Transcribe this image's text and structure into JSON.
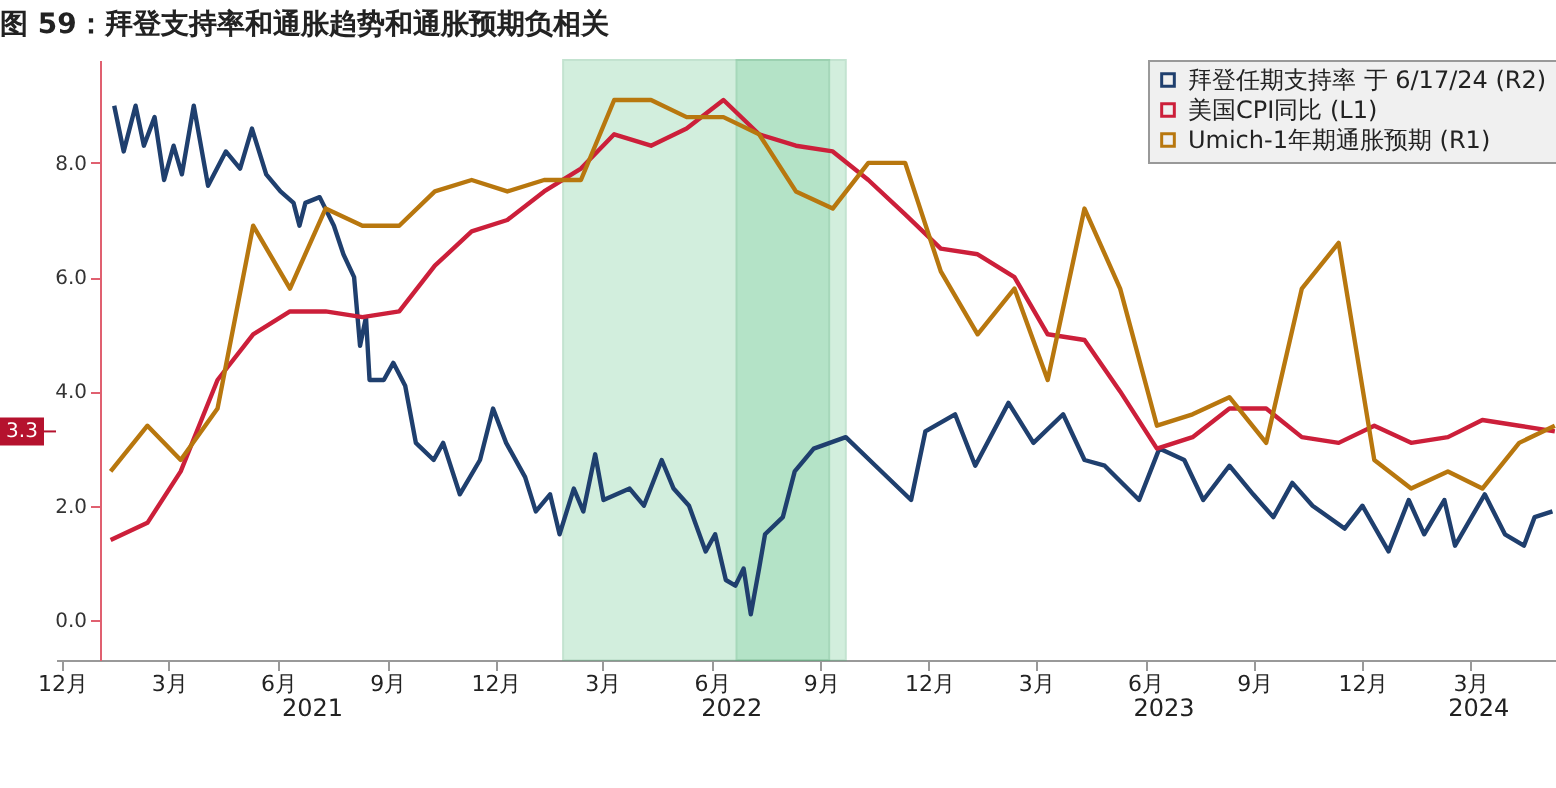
{
  "chart_data": {
    "type": "line",
    "title": "图 59：拜登支持率和通胀趋势和通胀预期负相关",
    "xlim": [
      "2020-12-10",
      "2024-05-26"
    ],
    "xticks": [
      {
        "value": "2020-12-15",
        "label": "12月"
      },
      {
        "value": "2021-03-15",
        "label": "3月"
      },
      {
        "value": "2021-06-15",
        "label": "6月"
      },
      {
        "value": "2021-09-15",
        "label": "9月"
      },
      {
        "value": "2021-12-15",
        "label": "12月"
      },
      {
        "value": "2022-03-15",
        "label": "3月"
      },
      {
        "value": "2022-06-15",
        "label": "6月"
      },
      {
        "value": "2022-09-15",
        "label": "9月"
      },
      {
        "value": "2022-12-15",
        "label": "12月"
      },
      {
        "value": "2023-03-15",
        "label": "3月"
      },
      {
        "value": "2023-06-15",
        "label": "6月"
      },
      {
        "value": "2023-09-15",
        "label": "9月"
      },
      {
        "value": "2023-12-15",
        "label": "12月"
      },
      {
        "value": "2024-03-15",
        "label": "3月"
      }
    ],
    "ylim": [
      -0.7,
      9.8
    ],
    "yticks": [
      {
        "value": 0,
        "label": "0.0"
      },
      {
        "value": 2,
        "label": "2.0"
      },
      {
        "value": 4,
        "label": "4.0"
      },
      {
        "value": 6,
        "label": "6.0"
      },
      {
        "value": 8,
        "label": "8.0"
      }
    ],
    "grid": false,
    "legend": "top right",
    "line_style": "solid",
    "series": [
      {
        "name": "拜登任期支持率 于 6/17/24 (R2)",
        "color": "#1f3f6e",
        "x": [
          "2021-01-28",
          "2021-02-05",
          "2021-02-15",
          "2021-02-22",
          "2021-03-03",
          "2021-03-11",
          "2021-03-19",
          "2021-03-26",
          "2021-04-05",
          "2021-04-17",
          "2021-05-02",
          "2021-05-14",
          "2021-05-24",
          "2021-06-05",
          "2021-06-17",
          "2021-06-28",
          "2021-07-03",
          "2021-07-08",
          "2021-07-20",
          "2021-08-01",
          "2021-08-09",
          "2021-08-18",
          "2021-08-23",
          "2021-08-28",
          "2021-08-31",
          "2021-09-12",
          "2021-09-20",
          "2021-09-30",
          "2021-10-09",
          "2021-10-24",
          "2021-11-01",
          "2021-11-15",
          "2021-12-02",
          "2021-12-13",
          "2021-12-24",
          "2022-01-09",
          "2022-01-18",
          "2022-01-30",
          "2022-02-07",
          "2022-02-19",
          "2022-02-27",
          "2022-03-09",
          "2022-03-16",
          "2022-04-07",
          "2022-04-19",
          "2022-05-04",
          "2022-05-14",
          "2022-05-27",
          "2022-06-10",
          "2022-06-18",
          "2022-06-27",
          "2022-07-05",
          "2022-07-12",
          "2022-07-18",
          "2022-07-25",
          "2022-07-30",
          "2022-08-14",
          "2022-08-24",
          "2022-09-09",
          "2022-10-06",
          "2022-10-31",
          "2022-11-30",
          "2022-12-12",
          "2023-01-06",
          "2023-01-23",
          "2023-02-20",
          "2023-03-13",
          "2023-04-07",
          "2023-04-25",
          "2023-05-12",
          "2023-06-10",
          "2023-06-27",
          "2023-07-18",
          "2023-08-03",
          "2023-08-25",
          "2023-09-14",
          "2023-10-01",
          "2023-10-17",
          "2023-11-03",
          "2023-11-30",
          "2023-12-15",
          "2024-01-06",
          "2024-01-23",
          "2024-02-05",
          "2024-02-22",
          "2024-03-02",
          "2024-03-27",
          "2024-04-13",
          "2024-04-29",
          "2024-05-08",
          "2024-05-23"
        ],
        "values": [
          9.0,
          8.2,
          9.0,
          8.3,
          8.8,
          7.7,
          8.3,
          7.8,
          9.0,
          7.6,
          8.2,
          7.9,
          8.6,
          7.8,
          7.5,
          7.3,
          6.9,
          7.3,
          7.4,
          6.9,
          6.4,
          6.0,
          4.8,
          5.3,
          4.2,
          4.2,
          4.5,
          4.1,
          3.1,
          2.8,
          3.1,
          2.2,
          2.8,
          3.7,
          3.1,
          2.5,
          1.9,
          2.2,
          1.5,
          2.3,
          1.9,
          2.9,
          2.1,
          2.3,
          2.0,
          2.8,
          2.3,
          2.0,
          1.2,
          1.5,
          0.7,
          0.6,
          0.9,
          0.1,
          0.9,
          1.5,
          1.8,
          2.6,
          3.0,
          3.2,
          2.7,
          2.1,
          3.3,
          3.6,
          2.7,
          3.8,
          3.1,
          3.6,
          2.8,
          2.7,
          2.1,
          3.0,
          2.8,
          2.1,
          2.7,
          2.2,
          1.8,
          2.4,
          2.0,
          1.6,
          2.0,
          1.2,
          2.1,
          1.5,
          2.1,
          1.3,
          2.2,
          1.5,
          1.3,
          1.8,
          1.9
        ]
      },
      {
        "name": "美国CPI同比 (L1)",
        "color": "#cc1f3a",
        "x": [
          "2021-01-25",
          "2021-02-25",
          "2021-03-25",
          "2021-04-25",
          "2021-05-25",
          "2021-06-25",
          "2021-07-25",
          "2021-08-25",
          "2021-09-25",
          "2021-10-25",
          "2021-11-25",
          "2021-12-25",
          "2022-01-25",
          "2022-02-25",
          "2022-03-25",
          "2022-04-25",
          "2022-05-25",
          "2022-06-25",
          "2022-07-25",
          "2022-08-25",
          "2022-09-25",
          "2022-10-25",
          "2022-11-25",
          "2022-12-25",
          "2023-01-25",
          "2023-02-25",
          "2023-03-25",
          "2023-04-25",
          "2023-05-25",
          "2023-06-25",
          "2023-07-25",
          "2023-08-25",
          "2023-09-25",
          "2023-10-25",
          "2023-11-25",
          "2023-12-25",
          "2024-01-25",
          "2024-02-25",
          "2024-03-25",
          "2024-04-25",
          "2024-05-25"
        ],
        "values": [
          1.4,
          1.7,
          2.6,
          4.2,
          5.0,
          5.4,
          5.4,
          5.3,
          5.4,
          6.2,
          6.8,
          7.0,
          7.5,
          7.9,
          8.5,
          8.3,
          8.6,
          9.1,
          8.5,
          8.3,
          8.2,
          7.7,
          7.1,
          6.5,
          6.4,
          6.0,
          5.0,
          4.9,
          4.0,
          3.0,
          3.2,
          3.7,
          3.7,
          3.2,
          3.1,
          3.4,
          3.1,
          3.2,
          3.5,
          3.4,
          3.3
        ]
      },
      {
        "name": "Umich-1年期通胀预期 (R1)",
        "color": "#b8770e",
        "x": [
          "2021-01-25",
          "2021-02-25",
          "2021-03-25",
          "2021-04-25",
          "2021-05-25",
          "2021-06-25",
          "2021-07-25",
          "2021-08-25",
          "2021-09-25",
          "2021-10-25",
          "2021-11-25",
          "2021-12-25",
          "2022-01-25",
          "2022-02-25",
          "2022-03-25",
          "2022-04-25",
          "2022-05-25",
          "2022-06-25",
          "2022-07-25",
          "2022-08-25",
          "2022-09-25",
          "2022-10-25",
          "2022-11-25",
          "2022-12-25",
          "2023-01-25",
          "2023-02-25",
          "2023-03-25",
          "2023-04-25",
          "2023-05-25",
          "2023-06-25",
          "2023-07-25",
          "2023-08-25",
          "2023-09-25",
          "2023-10-25",
          "2023-11-25",
          "2023-12-25",
          "2024-01-25",
          "2024-02-25",
          "2024-03-25",
          "2024-04-25",
          "2024-05-25"
        ],
        "values": [
          2.6,
          3.4,
          2.8,
          3.7,
          6.9,
          5.8,
          7.2,
          6.9,
          6.9,
          7.5,
          7.7,
          7.5,
          7.7,
          7.7,
          9.1,
          9.1,
          8.8,
          8.8,
          8.5,
          7.5,
          7.2,
          8.0,
          8.0,
          6.1,
          5.0,
          5.8,
          4.2,
          7.2,
          5.8,
          3.4,
          3.6,
          3.9,
          3.1,
          5.8,
          6.6,
          2.8,
          2.3,
          2.6,
          2.3,
          3.1,
          3.4
        ]
      }
    ],
    "bands": [
      {
        "axis": "x",
        "from": "2022-02-10",
        "to": "2022-10-06",
        "color": "#7fd1a0"
      },
      {
        "axis": "x",
        "from": "2022-07-06",
        "to": "2022-09-22",
        "color": "#7fd1a0"
      }
    ],
    "ref_lines": [
      {
        "axis": "y",
        "value": 3.3,
        "label": "3.3",
        "color": "#b5122e"
      }
    ],
    "x2lim": [
      "2020-12-10",
      "2024-05-26"
    ],
    "x2ticks": [
      {
        "value": "2021-07-14",
        "label": "2021"
      },
      {
        "value": "2022-07-02",
        "label": "2022"
      },
      {
        "value": "2023-07-01",
        "label": "2023"
      },
      {
        "value": "2024-03-22",
        "label": "2024"
      }
    ]
  }
}
